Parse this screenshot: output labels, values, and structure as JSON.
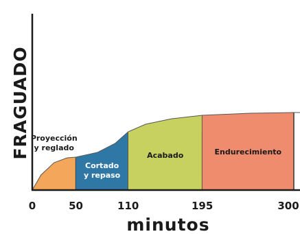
{
  "chart_data": {
    "type": "area",
    "ylabel": "FRAGUADO",
    "xlabel": "minutos",
    "x_ticks": [
      "0",
      "50",
      "110",
      "195",
      "300"
    ],
    "xlim": [
      0,
      300
    ],
    "grid": false,
    "curve": {
      "x": [
        0,
        10,
        25,
        40,
        50,
        75,
        95,
        110,
        130,
        160,
        195,
        250,
        300
      ],
      "y": [
        0,
        0.22,
        0.4,
        0.47,
        0.48,
        0.55,
        0.68,
        0.85,
        0.96,
        1.04,
        1.09,
        1.12,
        1.13
      ]
    },
    "phases": [
      {
        "label_lines": [
          "Proyección",
          "y reglado"
        ],
        "start": 0,
        "end": 50,
        "color": "#f4a75a",
        "text_color": "#1a1a1a",
        "label_position": "above"
      },
      {
        "label_lines": [
          "Cortado",
          "y repaso"
        ],
        "start": 50,
        "end": 110,
        "color": "#2f78a6",
        "text_color": "#ffffff",
        "label_position": "inside"
      },
      {
        "label_lines": [
          "Acabado"
        ],
        "start": 110,
        "end": 195,
        "color": "#c7d160",
        "text_color": "#1a1a1a",
        "label_position": "inside"
      },
      {
        "label_lines": [
          "Endurecimiento"
        ],
        "start": 195,
        "end": 300,
        "color": "#f08c6e",
        "text_color": "#1a1a1a",
        "label_position": "inside"
      }
    ]
  }
}
